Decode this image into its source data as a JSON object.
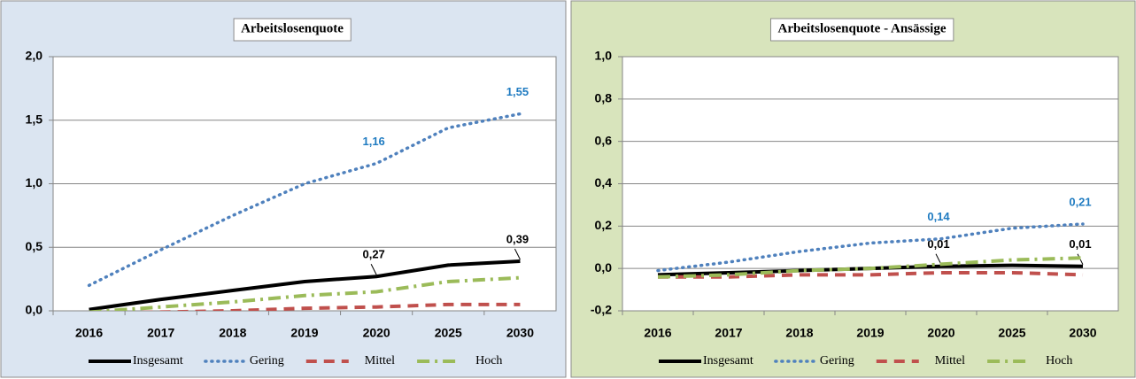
{
  "chart_data": [
    {
      "type": "line",
      "title": "Arbeitslosenquote",
      "categories": [
        "2016",
        "2017",
        "2018",
        "2019",
        "2020",
        "2025",
        "2030"
      ],
      "ylim": [
        0,
        2
      ],
      "yticks": [
        {
          "value": 0,
          "label": "0,0"
        },
        {
          "value": 0.5,
          "label": "0,5"
        },
        {
          "value": 1,
          "label": "1,0"
        },
        {
          "value": 1.5,
          "label": "1,5"
        },
        {
          "value": 2,
          "label": "2,0"
        }
      ],
      "grid": true,
      "legend": "bottom",
      "background": "#dbe5f1",
      "series": [
        {
          "name": "Insgesamt",
          "color": "#000000",
          "style": "solid",
          "values": [
            0.01,
            0.09,
            0.16,
            0.23,
            0.27,
            0.36,
            0.39
          ],
          "value_labels": [
            null,
            null,
            null,
            null,
            "0,27",
            null,
            "0,39"
          ]
        },
        {
          "name": "Gering",
          "color": "#4f81bd",
          "style": "dotted",
          "values": [
            0.2,
            0.48,
            0.75,
            1.0,
            1.16,
            1.44,
            1.55
          ],
          "value_labels": [
            null,
            null,
            null,
            null,
            "1,16",
            null,
            "1,55"
          ]
        },
        {
          "name": "Mittel",
          "color": "#c0504d",
          "style": "dashed",
          "values": [
            -0.02,
            -0.01,
            0.0,
            0.02,
            0.03,
            0.05,
            0.05
          ]
        },
        {
          "name": "Hoch",
          "color": "#9bbb59",
          "style": "dashdot",
          "values": [
            -0.01,
            0.03,
            0.07,
            0.12,
            0.15,
            0.23,
            0.26
          ]
        }
      ]
    },
    {
      "type": "line",
      "title": "Arbeitslosenquote  - Ansässige",
      "categories": [
        "2016",
        "2017",
        "2018",
        "2019",
        "2020",
        "2025",
        "2030"
      ],
      "ylim": [
        -0.2,
        1
      ],
      "yticks": [
        {
          "value": -0.2,
          "label": "-0,2"
        },
        {
          "value": 0,
          "label": "0,0"
        },
        {
          "value": 0.2,
          "label": "0,2"
        },
        {
          "value": 0.4,
          "label": "0,4"
        },
        {
          "value": 0.6,
          "label": "0,6"
        },
        {
          "value": 0.8,
          "label": "0,8"
        },
        {
          "value": 1,
          "label": "1,0"
        }
      ],
      "grid": true,
      "legend": "bottom",
      "background": "#d8e4bc",
      "series": [
        {
          "name": "Insgesamt",
          "color": "#000000",
          "style": "solid",
          "values": [
            -0.03,
            -0.02,
            -0.01,
            0.0,
            0.01,
            0.015,
            0.01
          ],
          "value_labels": [
            null,
            null,
            null,
            null,
            "0,01",
            null,
            "0,01"
          ]
        },
        {
          "name": "Gering",
          "color": "#4f81bd",
          "style": "dotted",
          "values": [
            -0.01,
            0.03,
            0.08,
            0.12,
            0.14,
            0.19,
            0.21
          ],
          "value_labels": [
            null,
            null,
            null,
            null,
            "0,14",
            null,
            "0,21"
          ]
        },
        {
          "name": "Mittel",
          "color": "#c0504d",
          "style": "dashed",
          "values": [
            -0.04,
            -0.04,
            -0.03,
            -0.03,
            -0.02,
            -0.02,
            -0.03
          ]
        },
        {
          "name": "Hoch",
          "color": "#9bbb59",
          "style": "dashdot",
          "values": [
            -0.04,
            -0.03,
            -0.01,
            0.0,
            0.02,
            0.04,
            0.05
          ]
        }
      ]
    }
  ]
}
